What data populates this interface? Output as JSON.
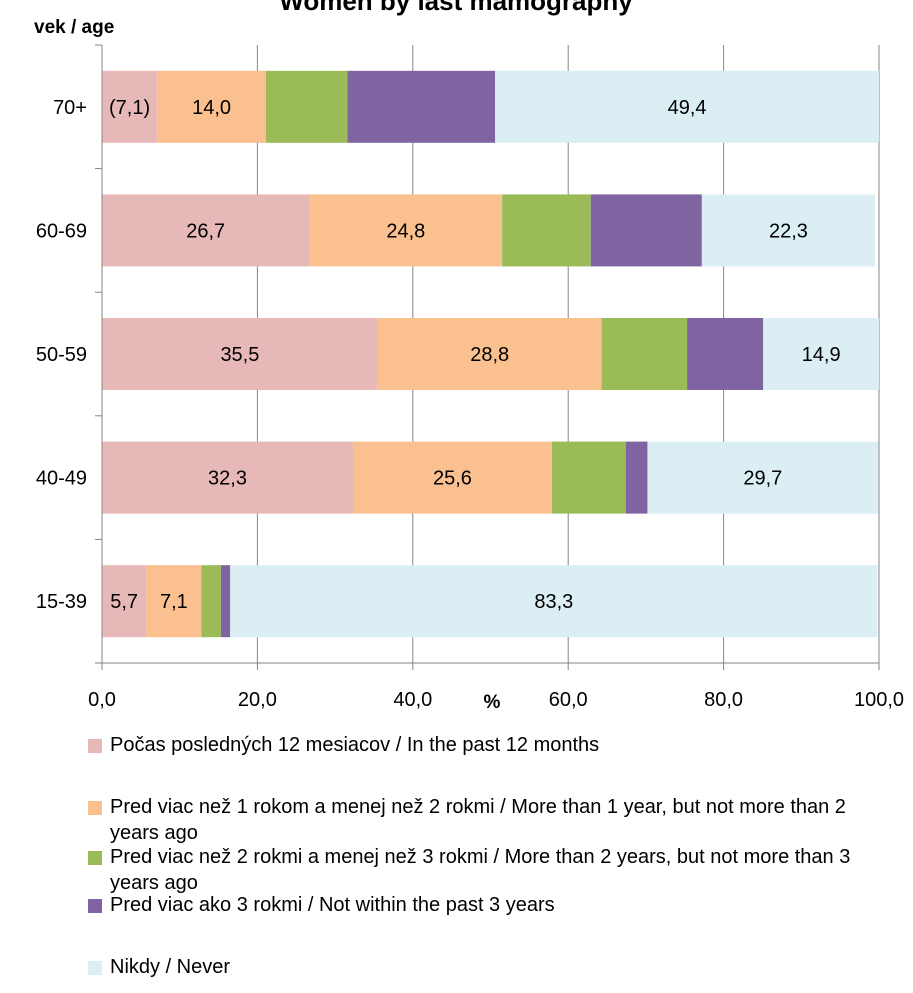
{
  "chart_data": {
    "type": "bar",
    "orientation": "horizontal",
    "stacked": true,
    "title": "Women by last mamography",
    "ylabel": "vek / age",
    "xlabel": "%",
    "categories": [
      "70+",
      "60-69",
      "50-59",
      "40-49",
      "15-39"
    ],
    "xlim": [
      0,
      100
    ],
    "xticks": [
      "0,0",
      "20,0",
      "40,0",
      "60,0",
      "80,0",
      "100,0"
    ],
    "grid": "vertical",
    "legend_position": "bottom",
    "series": [
      {
        "name": "Počas posledných 12 mesiacov / In the past 12 months",
        "color": "#e6b8b7",
        "values": [
          7.1,
          26.7,
          35.5,
          32.3,
          5.7
        ],
        "labels": [
          "(7,1)",
          "26,7",
          "35,5",
          "32,3",
          "5,7"
        ]
      },
      {
        "name": "Pred viac než 1 rokom a menej než 2 rokmi / More than 1 year, but not more than 2 years ago",
        "color": "#fac090",
        "values": [
          14.0,
          24.8,
          28.8,
          25.6,
          7.1
        ],
        "labels": [
          "14,0",
          "24,8",
          "28,8",
          "25,6",
          "7,1"
        ]
      },
      {
        "name": "Pred viac než 2 rokmi a menej než 3 rokmi / More than 2 years, but not more than 3 years ago",
        "color": "#9bbb59",
        "values": [
          10.5,
          11.4,
          11.0,
          9.5,
          2.5
        ],
        "labels": [
          "",
          "",
          "",
          "",
          ""
        ]
      },
      {
        "name": "Pred viac ako 3 rokmi / Not within the past 3 years",
        "color": "#8064a2",
        "values": [
          19.0,
          14.3,
          9.8,
          2.8,
          1.2
        ],
        "labels": [
          "",
          "",
          "",
          "",
          ""
        ]
      },
      {
        "name": "Nikdy / Never",
        "color": "#daeef3",
        "values": [
          49.4,
          22.3,
          14.9,
          29.7,
          83.3
        ],
        "labels": [
          "49,4",
          "22,3",
          "14,9",
          "29,7",
          "83,3"
        ]
      }
    ]
  }
}
